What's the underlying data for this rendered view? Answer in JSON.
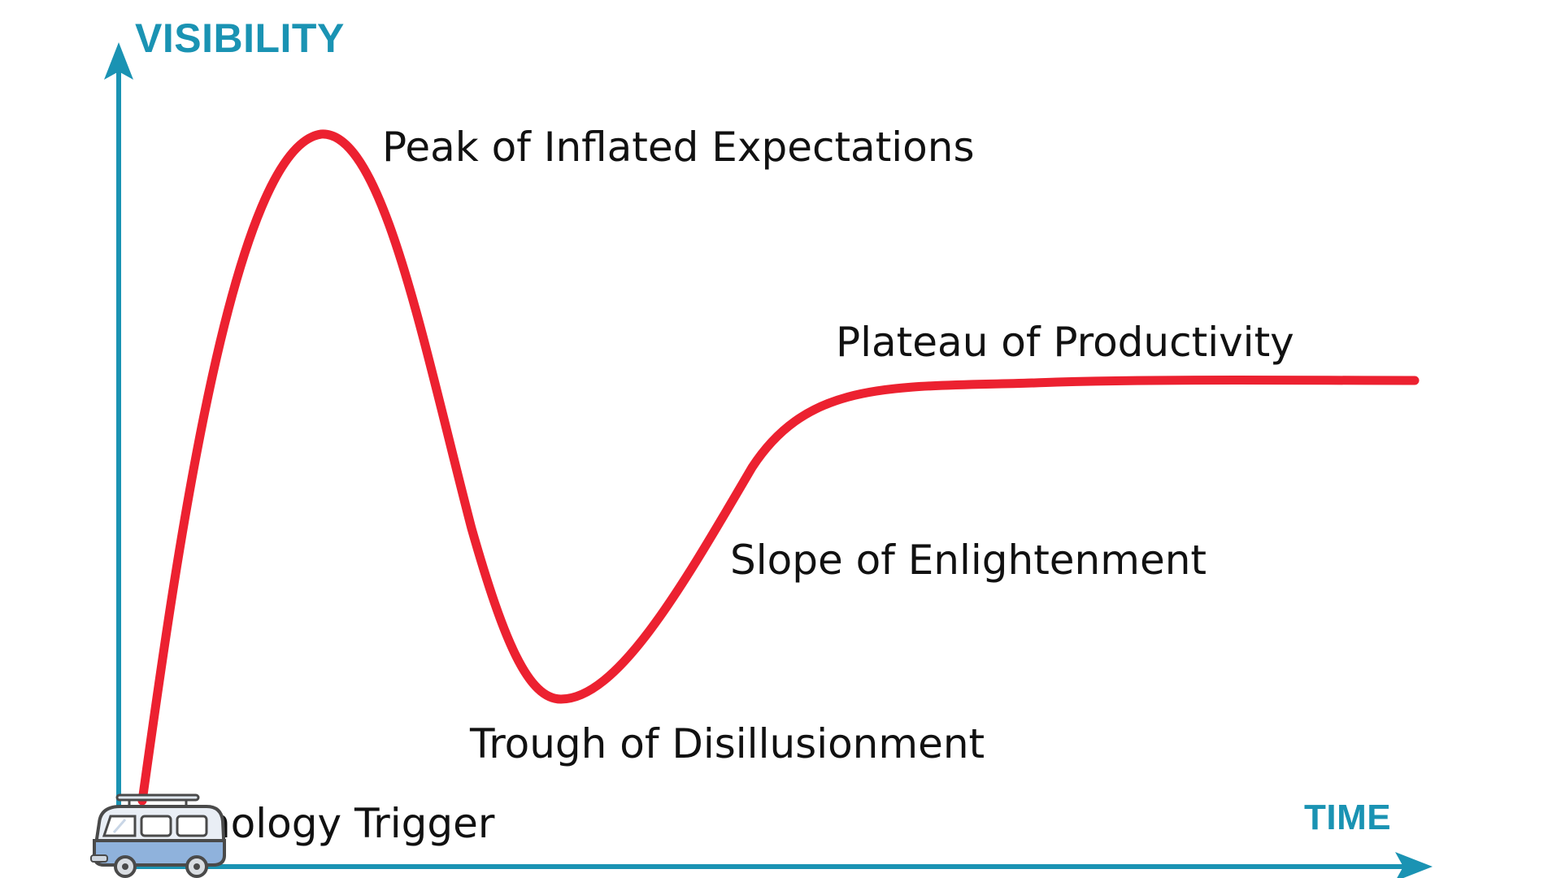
{
  "diagram": {
    "y_axis_label": "VISIBILITY",
    "x_axis_label": "TIME",
    "phases": {
      "trigger": "Technology Trigger",
      "peak": "Peak of Inflated Expectations",
      "trough": "Trough of Disillusionment",
      "slope": "Slope of Enlightenment",
      "plateau": "Plateau of Productivity"
    },
    "colors": {
      "axis": "#1a93b3",
      "curve": "#ec2130",
      "text": "#111111",
      "van_body": "#8fb2dc",
      "van_roof": "#e9eef5",
      "van_outline": "#4a4a4a"
    },
    "icons": {
      "marker": "camper-van-icon"
    }
  }
}
